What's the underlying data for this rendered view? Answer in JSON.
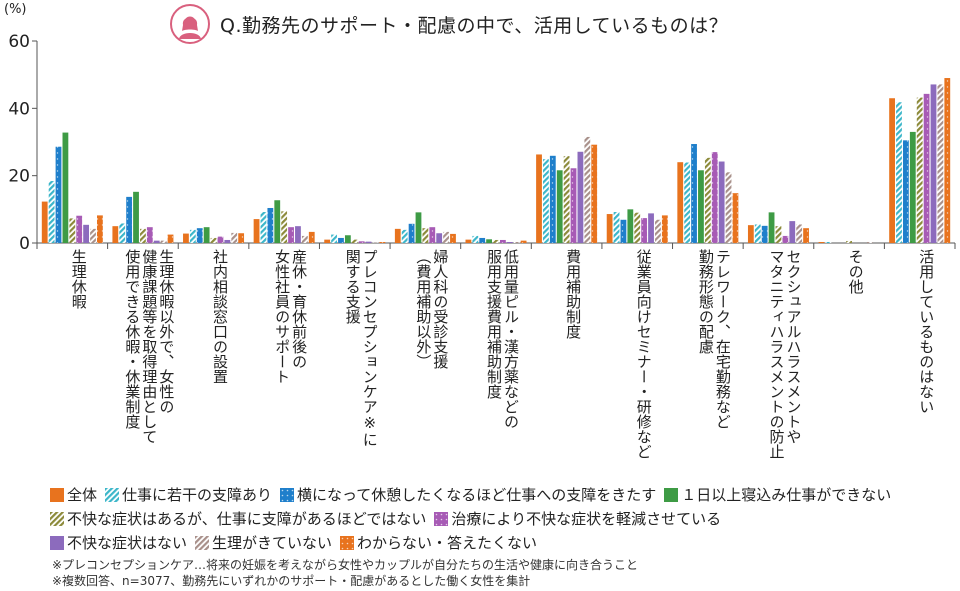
{
  "header": {
    "title": "Q.勤務先のサポート・配慮の中で、活用しているものは？",
    "icon": "woman-avatar-icon",
    "icon_color": "#d9607e"
  },
  "chart_data": {
    "type": "bar",
    "title": "Q.勤務先のサポート・配慮の中で、活用しているものは？",
    "ylabel": "(%)",
    "xlabel": "",
    "ylim": [
      0,
      60
    ],
    "yticks": [
      0,
      20,
      40,
      60
    ],
    "grid": false,
    "legend_position": "bottom",
    "categories": [
      "生理休暇",
      "生理休暇以外で、女性の\n健康課題等を取得理由として\n使用できる休暇・休業制度",
      "社内相談窓口の設置",
      "産休・育休前後の\n女性社員のサポート",
      "プレコンセプションケア※に\n関する支援",
      "婦人科の受診支援\n（費用補助以外）",
      "低用量ピル・漢方薬などの\n服用支援費用補助制度",
      "費用補助制度",
      "従業員向けセミナー・研修など",
      "テレワーク、在宅勤務など\n勤務形態の配慮",
      "セクシュアルハラスメントや\nマタニティハラスメントの防止",
      "その他",
      "活用しているものはない"
    ],
    "series": [
      {
        "name": "全体",
        "color": "#e8731e",
        "pattern": "solid",
        "values": [
          12.3,
          5.0,
          2.8,
          7.1,
          1.0,
          4.2,
          1.0,
          26.3,
          8.6,
          24.0,
          5.3,
          0.3,
          43.0
        ]
      },
      {
        "name": "仕事に若干の支障あり",
        "color": "#3bb6c9",
        "pattern": "hatch",
        "values": [
          18.4,
          5.8,
          3.9,
          9.2,
          2.5,
          3.9,
          2.1,
          24.9,
          9.2,
          23.9,
          5.5,
          0.3,
          41.8
        ]
      },
      {
        "name": "横になって休憩したくなるほど仕事への支障をきたす",
        "color": "#1f7fcb",
        "pattern": "dots",
        "values": [
          28.6,
          13.7,
          4.4,
          10.4,
          1.5,
          5.7,
          1.5,
          25.9,
          6.9,
          29.4,
          5.1,
          0.0,
          30.5
        ]
      },
      {
        "name": "１日以上寝込み仕事ができない",
        "color": "#3e9b45",
        "pattern": "solid",
        "values": [
          32.8,
          15.2,
          4.7,
          12.7,
          2.3,
          9.1,
          1.1,
          21.6,
          10.0,
          21.6,
          9.1,
          0.0,
          33.0
        ]
      },
      {
        "name": "不快な症状はあるが、仕事に支障があるほどではない",
        "color": "#8c8a3a",
        "pattern": "hatch",
        "values": [
          7.3,
          4.2,
          1.5,
          9.4,
          1.0,
          4.4,
          0.9,
          25.8,
          9.0,
          25.3,
          5.0,
          0.6,
          43.2
        ]
      },
      {
        "name": "治療により不快な症状を軽減させている",
        "color": "#a75bb5",
        "pattern": "dots",
        "values": [
          8.1,
          4.7,
          1.9,
          4.7,
          0.5,
          4.7,
          0.9,
          22.2,
          7.4,
          27.0,
          2.1,
          0.0,
          44.3
        ]
      },
      {
        "name": "不快な症状はない",
        "color": "#8c6bbd",
        "pattern": "solid",
        "values": [
          5.4,
          0.7,
          0.9,
          5.0,
          0.4,
          2.9,
          0.3,
          27.1,
          8.8,
          24.2,
          6.5,
          0.0,
          47.1
        ]
      },
      {
        "name": "生理がきていない",
        "color": "#a8908a",
        "pattern": "hatch",
        "values": [
          4.2,
          0.7,
          3.0,
          2.1,
          0.1,
          3.3,
          0.3,
          31.5,
          6.9,
          21.0,
          5.5,
          0.3,
          47.1
        ]
      },
      {
        "name": "わからない・答えたくない",
        "color": "#e8731e",
        "pattern": "dots",
        "values": [
          8.2,
          2.5,
          2.9,
          3.3,
          0.3,
          2.7,
          0.7,
          29.2,
          8.2,
          14.8,
          4.4,
          0.0,
          49.0
        ]
      }
    ]
  },
  "legend_rows": [
    [
      0,
      1,
      2,
      3
    ],
    [
      4,
      5
    ],
    [
      6,
      7,
      8
    ]
  ],
  "notes": [
    "※プレコンセプションケア…将来の妊娠を考えながら女性やカップルが自分たちの生活や健康に向き合うこと",
    "※複数回答、n=3077、勤務先にいずれかのサポート・配慮があるとした働く女性を集計"
  ]
}
